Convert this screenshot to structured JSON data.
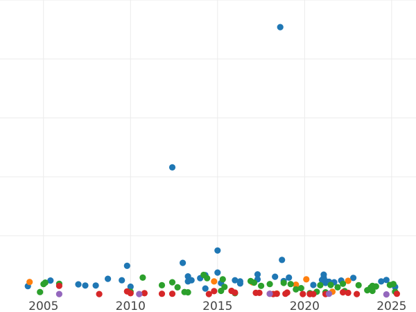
{
  "chart_data": {
    "type": "scatter",
    "title": "",
    "xlabel": "",
    "ylabel": "",
    "xlim": [
      2002.5,
      2026.4
    ],
    "ylim": [
      0,
      1.0
    ],
    "grid": true,
    "x_ticks": [
      2005,
      2010,
      2015,
      2020,
      2025
    ],
    "x_tick_labels": [
      "2005",
      "2010",
      "2015",
      "2020",
      "2025"
    ],
    "y_grid": [
      0.2,
      0.4,
      0.6,
      0.8,
      1.0
    ],
    "series": [
      {
        "color": "#1f77b4",
        "points": [
          [
            2004.1,
            0.029
          ],
          [
            2005.4,
            0.048
          ],
          [
            2007.0,
            0.035
          ],
          [
            2007.4,
            0.031
          ],
          [
            2008.0,
            0.031
          ],
          [
            2008.7,
            0.054
          ],
          [
            2009.5,
            0.049
          ],
          [
            2009.8,
            0.098
          ],
          [
            2010.0,
            0.027
          ],
          [
            2012.4,
            0.432
          ],
          [
            2013.0,
            0.108
          ],
          [
            2013.3,
            0.062
          ],
          [
            2013.3,
            0.045
          ],
          [
            2013.5,
            0.049
          ],
          [
            2014.0,
            0.056
          ],
          [
            2014.3,
            0.021
          ],
          [
            2014.3,
            0.066
          ],
          [
            2015.0,
            0.15
          ],
          [
            2015.0,
            0.075
          ],
          [
            2015.2,
            0.039
          ],
          [
            2016.0,
            0.049
          ],
          [
            2016.3,
            0.038
          ],
          [
            2016.3,
            0.045
          ],
          [
            2017.3,
            0.069
          ],
          [
            2017.3,
            0.052
          ],
          [
            2018.3,
            0.061
          ],
          [
            2018.6,
            0.908
          ],
          [
            2018.7,
            0.118
          ],
          [
            2018.8,
            0.046
          ],
          [
            2019.1,
            0.058
          ],
          [
            2020.5,
            0.033
          ],
          [
            2021.0,
            0.05
          ],
          [
            2021.1,
            0.068
          ],
          [
            2021.1,
            0.058
          ],
          [
            2021.2,
            0.04
          ],
          [
            2021.2,
            0.046
          ],
          [
            2021.4,
            0.044
          ],
          [
            2021.7,
            0.042
          ],
          [
            2022.1,
            0.048
          ],
          [
            2022.8,
            0.057
          ],
          [
            2024.4,
            0.045
          ],
          [
            2024.7,
            0.05
          ],
          [
            2025.2,
            0.026
          ]
        ]
      },
      {
        "color": "#ff7f0e",
        "points": [
          [
            2004.2,
            0.043
          ],
          [
            2014.8,
            0.045
          ],
          [
            2017.0,
            0.042
          ],
          [
            2018.4,
            0.004
          ],
          [
            2019.5,
            0.034
          ],
          [
            2020.1,
            0.052
          ],
          [
            2021.6,
            0.01
          ],
          [
            2022.5,
            0.047
          ]
        ]
      },
      {
        "color": "#2ca02c",
        "points": [
          [
            2004.8,
            0.009
          ],
          [
            2005.0,
            0.036
          ],
          [
            2005.1,
            0.041
          ],
          [
            2005.9,
            0.037
          ],
          [
            2010.0,
            0.01
          ],
          [
            2010.7,
            0.058
          ],
          [
            2011.8,
            0.032
          ],
          [
            2012.4,
            0.042
          ],
          [
            2012.7,
            0.025
          ],
          [
            2013.1,
            0.009
          ],
          [
            2013.3,
            0.008
          ],
          [
            2014.2,
            0.067
          ],
          [
            2014.4,
            0.056
          ],
          [
            2015.2,
            0.013
          ],
          [
            2015.3,
            0.052
          ],
          [
            2015.4,
            0.026
          ],
          [
            2016.0,
            0.005
          ],
          [
            2016.9,
            0.046
          ],
          [
            2017.1,
            0.041
          ],
          [
            2017.5,
            0.03
          ],
          [
            2018.0,
            0.036
          ],
          [
            2018.8,
            0.04
          ],
          [
            2019.2,
            0.036
          ],
          [
            2019.5,
            0.018
          ],
          [
            2019.8,
            0.022
          ],
          [
            2020.3,
            0.005
          ],
          [
            2020.7,
            0.01
          ],
          [
            2020.9,
            0.032
          ],
          [
            2021.2,
            0.008
          ],
          [
            2021.5,
            0.033
          ],
          [
            2021.9,
            0.025
          ],
          [
            2022.2,
            0.037
          ],
          [
            2022.3,
            0.012
          ],
          [
            2023.1,
            0.032
          ],
          [
            2023.6,
            0.015
          ],
          [
            2023.8,
            0.024
          ],
          [
            2023.9,
            0.013
          ],
          [
            2023.9,
            0.03
          ],
          [
            2024.1,
            0.028
          ],
          [
            2024.9,
            0.033
          ],
          [
            2025.1,
            0.036
          ],
          [
            2025.2,
            0.01
          ]
        ]
      },
      {
        "color": "#d62728",
        "points": [
          [
            2005.9,
            0.03
          ],
          [
            2008.2,
            0.002
          ],
          [
            2009.8,
            0.011
          ],
          [
            2010.0,
            0.005
          ],
          [
            2010.8,
            0.005
          ],
          [
            2011.8,
            0.003
          ],
          [
            2012.4,
            0.003
          ],
          [
            2014.5,
            0.002
          ],
          [
            2014.8,
            0.012
          ],
          [
            2015.8,
            0.013
          ],
          [
            2016.0,
            0.007
          ],
          [
            2017.2,
            0.006
          ],
          [
            2017.4,
            0.006
          ],
          [
            2018.0,
            0.003
          ],
          [
            2018.2,
            0.002
          ],
          [
            2018.4,
            0.003
          ],
          [
            2018.9,
            0.003
          ],
          [
            2019.0,
            0.007
          ],
          [
            2019.9,
            0.002
          ],
          [
            2020.3,
            0.002
          ],
          [
            2020.5,
            0.002
          ],
          [
            2021.2,
            0.002
          ],
          [
            2022.2,
            0.008
          ],
          [
            2022.5,
            0.006
          ],
          [
            2023.0,
            0.002
          ],
          [
            2025.3,
            0.003
          ]
        ]
      },
      {
        "color": "#9467bd",
        "points": [
          [
            2005.9,
            0.002
          ],
          [
            2010.5,
            0.002
          ],
          [
            2018.0,
            0.003
          ],
          [
            2021.4,
            0.003
          ],
          [
            2024.7,
            0.001
          ]
        ]
      }
    ]
  }
}
